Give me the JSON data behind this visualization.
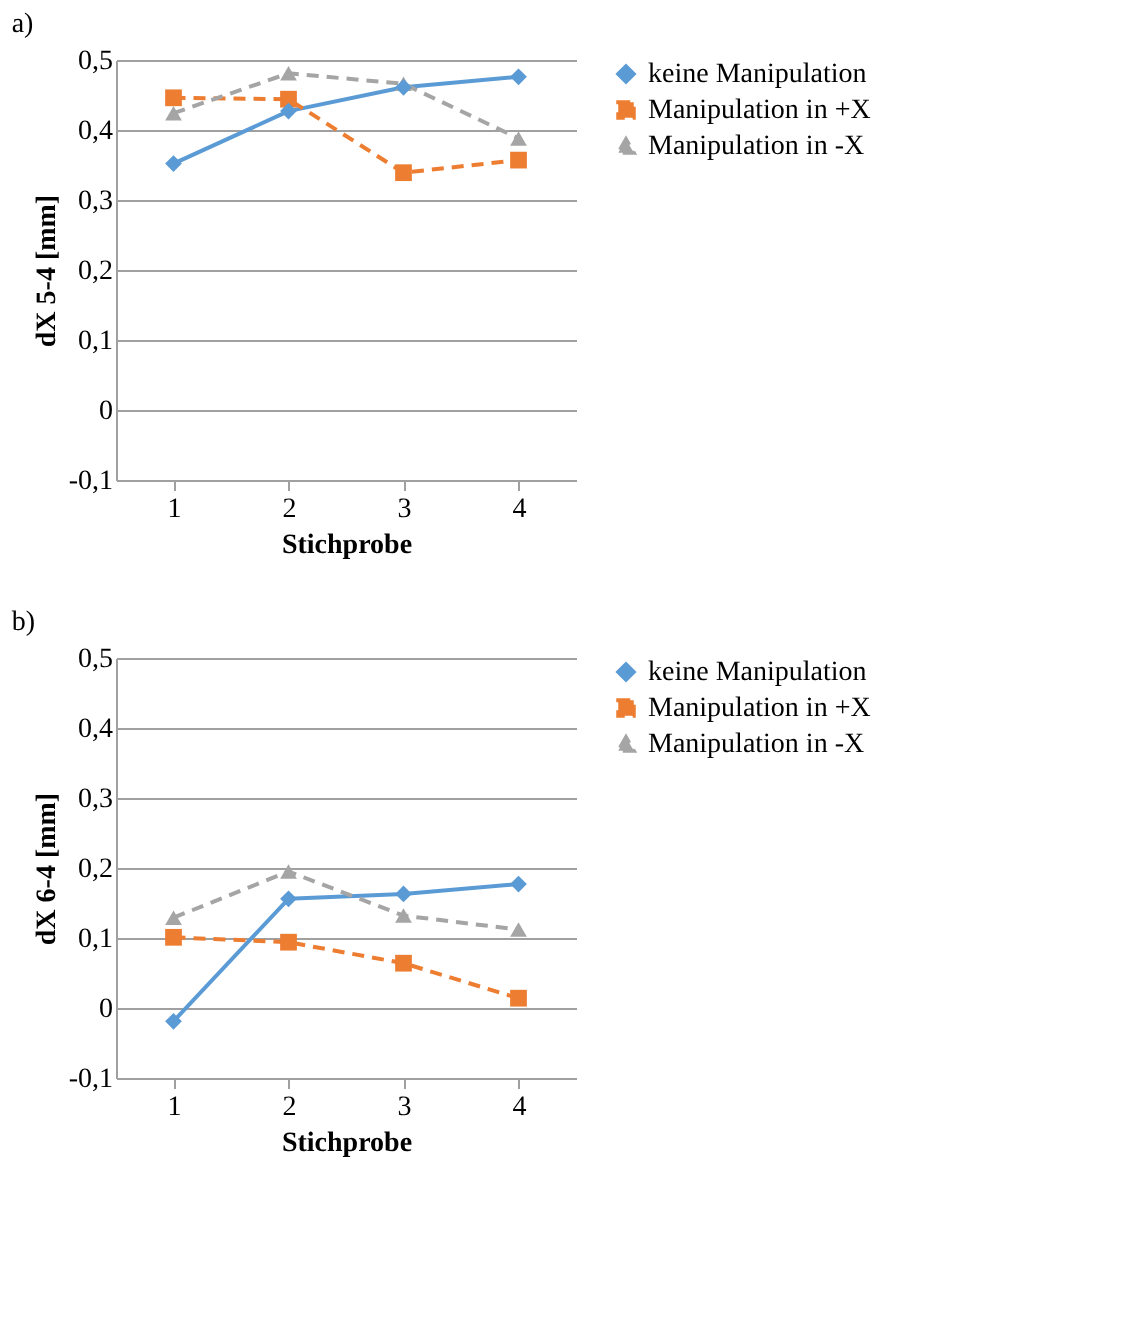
{
  "chart_data": [
    {
      "type": "line",
      "title": "a)",
      "xlabel": "Stichprobe",
      "ylabel": "dX 5-4  [mm]",
      "categories": [
        "1",
        "2",
        "3",
        "4"
      ],
      "ylim": [
        -0.1,
        0.5
      ],
      "yticks": [
        {
          "value": -0.1,
          "label": "-0,1"
        },
        0,
        {
          "value": 0.1,
          "label": "0,1"
        },
        {
          "value": 0.2,
          "label": "0,2"
        },
        {
          "value": 0.3,
          "label": "0,3"
        },
        {
          "value": 0.4,
          "label": "0,4"
        },
        {
          "value": 0.5,
          "label": "0,5"
        }
      ],
      "grid": "y",
      "legend": "right",
      "series": [
        {
          "name": "keine Manipulation",
          "color": "#5b9bd5",
          "marker": "diamond",
          "line_style": "solid",
          "values": [
            0.352,
            0.427,
            0.461,
            0.476
          ]
        },
        {
          "name": "Manipulation in +X",
          "color": "#ed7d31",
          "marker": "square",
          "line_style": "dashed",
          "values": [
            0.446,
            0.444,
            0.339,
            0.357
          ]
        },
        {
          "name": "Manipulation in -X",
          "color": "#a5a5a5",
          "marker": "triangle",
          "line_style": "dashed",
          "values": [
            0.424,
            0.481,
            0.466,
            0.388
          ]
        }
      ]
    },
    {
      "type": "line",
      "title": "b)",
      "xlabel": "Stichprobe",
      "ylabel": "dX 6-4  [mm]",
      "categories": [
        "1",
        "2",
        "3",
        "4"
      ],
      "ylim": [
        -0.1,
        0.5
      ],
      "yticks": [
        {
          "value": -0.1,
          "label": "-0,1"
        },
        0,
        {
          "value": 0.1,
          "label": "0,1"
        },
        {
          "value": 0.2,
          "label": "0,2"
        },
        {
          "value": 0.3,
          "label": "0,3"
        },
        {
          "value": 0.4,
          "label": "0,4"
        },
        {
          "value": 0.5,
          "label": "0,5"
        }
      ],
      "grid": "y",
      "legend": "right",
      "series": [
        {
          "name": "keine Manipulation",
          "color": "#5b9bd5",
          "marker": "diamond",
          "line_style": "solid",
          "values": [
            -0.019,
            0.156,
            0.163,
            0.177
          ]
        },
        {
          "name": "Manipulation in +X",
          "color": "#ed7d31",
          "marker": "square",
          "line_style": "dashed",
          "values": [
            0.101,
            0.094,
            0.064,
            0.014
          ]
        },
        {
          "name": "Manipulation in -X",
          "color": "#a5a5a5",
          "marker": "triangle",
          "line_style": "dashed",
          "values": [
            0.129,
            0.195,
            0.132,
            0.112
          ]
        }
      ]
    }
  ]
}
